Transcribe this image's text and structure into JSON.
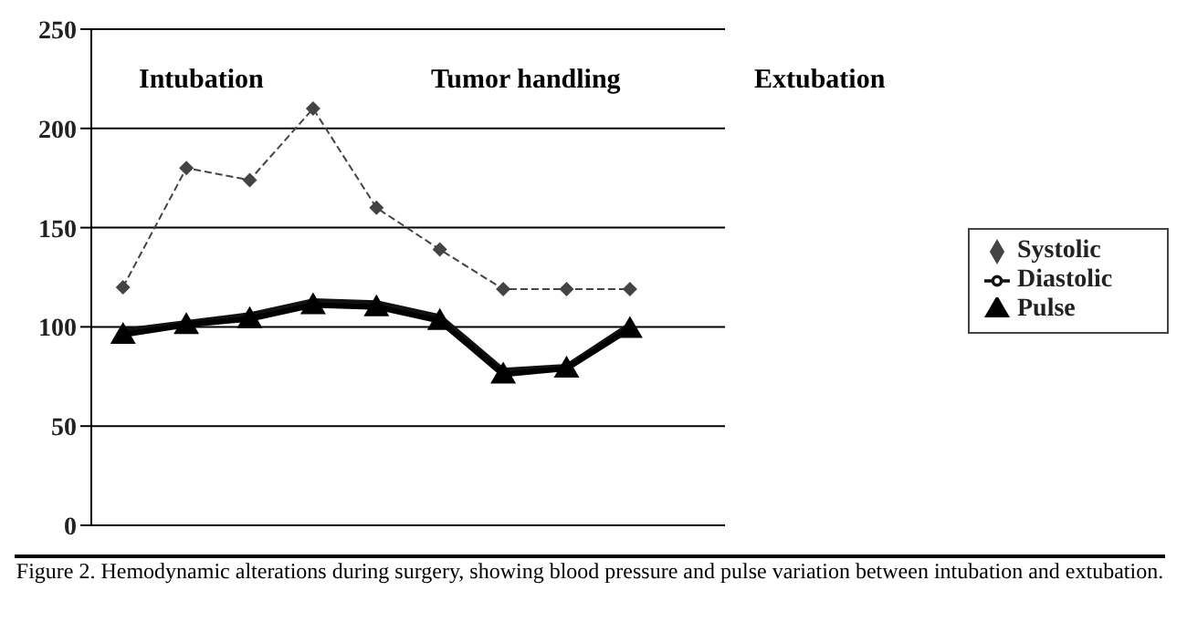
{
  "chart_data": {
    "type": "line",
    "categories": [
      null,
      null,
      null,
      null,
      null,
      null,
      null,
      null,
      null,
      null
    ],
    "series": [
      {
        "name": "Systolic",
        "color": "#444444",
        "values": [
          120,
          180,
          174,
          210,
          160,
          139,
          119,
          119,
          119,
          null
        ],
        "marker": "diamond",
        "line_style": "dashed"
      },
      {
        "name": "Diastolic",
        "color": "#111111",
        "values": [
          98,
          102,
          106,
          113,
          112,
          105,
          78,
          80,
          101,
          null
        ],
        "marker": "none",
        "line_style": "solid"
      },
      {
        "name": "Pulse",
        "color": "#000000",
        "values": [
          96,
          101,
          104,
          111,
          110,
          103,
          76,
          79,
          99,
          null
        ],
        "marker": "triangle",
        "line_style": "solid"
      }
    ],
    "ylim": [
      0,
      250
    ],
    "yticks": [
      0,
      50,
      100,
      150,
      200,
      250
    ],
    "grid": "y",
    "legend": "right",
    "tick_labels": "y",
    "annotations": [
      "Intubation",
      "Tumor handling",
      "Extubation",
      "Figure 2. Hemodynamic alterations during surgery, showing blood pressure and pulse variation between intubation and extubation."
    ]
  }
}
